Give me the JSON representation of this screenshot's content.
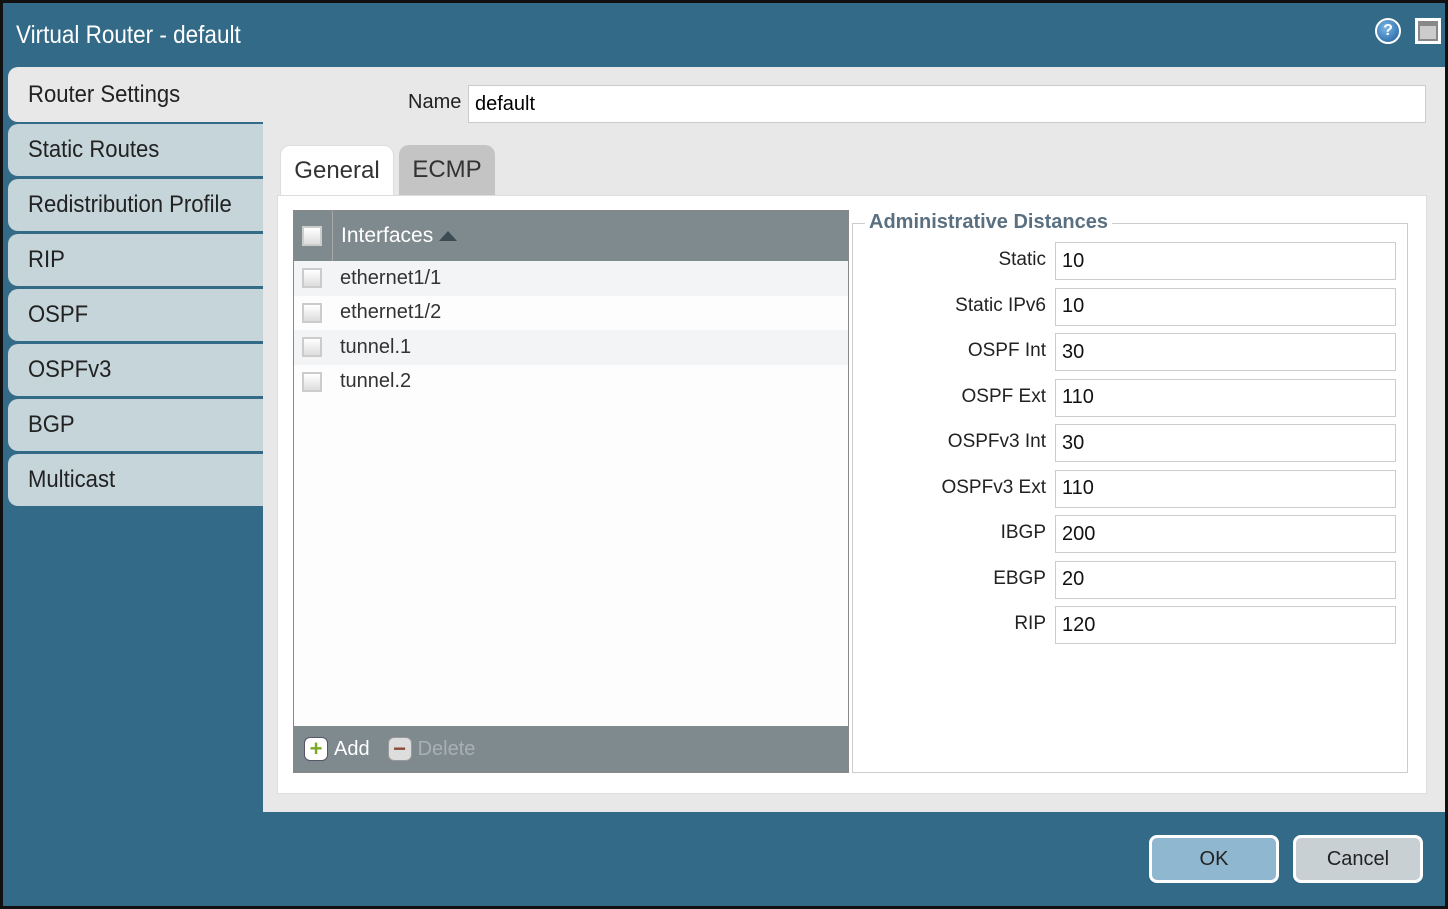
{
  "window": {
    "title": "Virtual Router - default",
    "help_icon": "help-icon",
    "maximize_icon": "maximize-icon"
  },
  "sidebar": {
    "items": [
      {
        "label": "Router Settings",
        "active": true
      },
      {
        "label": "Static Routes"
      },
      {
        "label": "Redistribution Profile"
      },
      {
        "label": "RIP"
      },
      {
        "label": "OSPF"
      },
      {
        "label": "OSPFv3"
      },
      {
        "label": "BGP"
      },
      {
        "label": "Multicast"
      }
    ]
  },
  "name": {
    "label": "Name",
    "value": "default"
  },
  "tabs": [
    {
      "label": "General",
      "active": true
    },
    {
      "label": "ECMP"
    }
  ],
  "interfaces": {
    "header": "Interfaces",
    "sort": "ascending",
    "rows": [
      "ethernet1/1",
      "ethernet1/2",
      "tunnel.1",
      "tunnel.2"
    ],
    "add_label": "Add",
    "delete_label": "Delete"
  },
  "admin_distances": {
    "title": "Administrative Distances",
    "fields": [
      {
        "label": "Static",
        "value": "10"
      },
      {
        "label": "Static IPv6",
        "value": "10"
      },
      {
        "label": "OSPF Int",
        "value": "30"
      },
      {
        "label": "OSPF Ext",
        "value": "110"
      },
      {
        "label": "OSPFv3 Int",
        "value": "30"
      },
      {
        "label": "OSPFv3 Ext",
        "value": "110"
      },
      {
        "label": "IBGP",
        "value": "200"
      },
      {
        "label": "EBGP",
        "value": "20"
      },
      {
        "label": "RIP",
        "value": "120"
      }
    ]
  },
  "footer": {
    "ok_label": "OK",
    "cancel_label": "Cancel"
  },
  "colors": {
    "titlebar": "#336a88",
    "ok": "#8fb8d0",
    "cancel": "#c8d0d4"
  }
}
